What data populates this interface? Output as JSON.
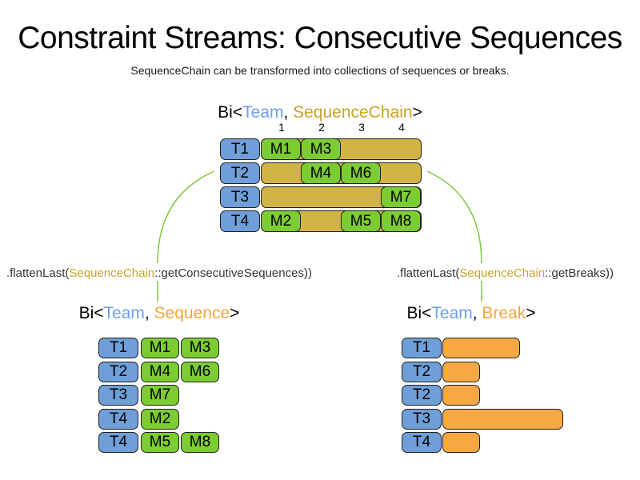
{
  "title": "Constraint Streams: Consecutive Sequences",
  "subtitle": "SequenceChain can be transformed into collections of sequences or breaks.",
  "colors": {
    "team_blue_fill": "#6f9fd8",
    "member_green_fill": "#7ccc33",
    "chain_gold_fill": "#d1b343",
    "break_orange_fill": "#f6a844",
    "team_blue_text": "#6d9eeb",
    "chain_gold_text": "#c9a227",
    "orange_text": "#f4a540",
    "arrow_green": "#7cc83e"
  },
  "top_section": {
    "type_label": {
      "prefix": "Bi<",
      "team": "Team",
      "separator": ", ",
      "value": "SequenceChain",
      "suffix": ">"
    },
    "column_numbers": [
      "1",
      "2",
      "3",
      "4"
    ],
    "rows": [
      {
        "team": "T1",
        "members": [
          {
            "label": "M1",
            "col": 1
          },
          {
            "label": "M3",
            "col": 2
          }
        ]
      },
      {
        "team": "T2",
        "members": [
          {
            "label": "M4",
            "col": 2
          },
          {
            "label": "M6",
            "col": 3
          }
        ]
      },
      {
        "team": "T3",
        "members": [
          {
            "label": "M7",
            "col": 4
          }
        ]
      },
      {
        "team": "T4",
        "members": [
          {
            "label": "M2",
            "col": 1
          },
          {
            "label": "M5",
            "col": 3
          },
          {
            "label": "M8",
            "col": 4
          }
        ]
      }
    ]
  },
  "left_branch": {
    "function_label": {
      "prefix": ".flattenLast(",
      "type": "SequenceChain",
      "suffix": "::getConsecutiveSequences))"
    },
    "type_label": {
      "prefix": "Bi<",
      "team": "Team",
      "separator": ", ",
      "value": "Sequence",
      "suffix": ">"
    },
    "rows": [
      {
        "team": "T1",
        "members": [
          "M1",
          "M3"
        ]
      },
      {
        "team": "T2",
        "members": [
          "M4",
          "M6"
        ]
      },
      {
        "team": "T3",
        "members": [
          "M7"
        ]
      },
      {
        "team": "T4",
        "members": [
          "M2"
        ]
      },
      {
        "team": "T4",
        "members": [
          "M5",
          "M8"
        ]
      }
    ]
  },
  "right_branch": {
    "function_label": {
      "prefix": ".flattenLast(",
      "type": "SequenceChain",
      "suffix": "::getBreaks))"
    },
    "type_label": {
      "prefix": "Bi<",
      "team": "Team",
      "separator": ", ",
      "value": "Break",
      "suffix": ">"
    },
    "rows": [
      {
        "team": "T1",
        "break_cols": 2
      },
      {
        "team": "T2",
        "break_cols": 1
      },
      {
        "team": "T2",
        "break_cols": 1
      },
      {
        "team": "T3",
        "break_cols": 3
      },
      {
        "team": "T4",
        "break_cols": 1
      }
    ]
  }
}
